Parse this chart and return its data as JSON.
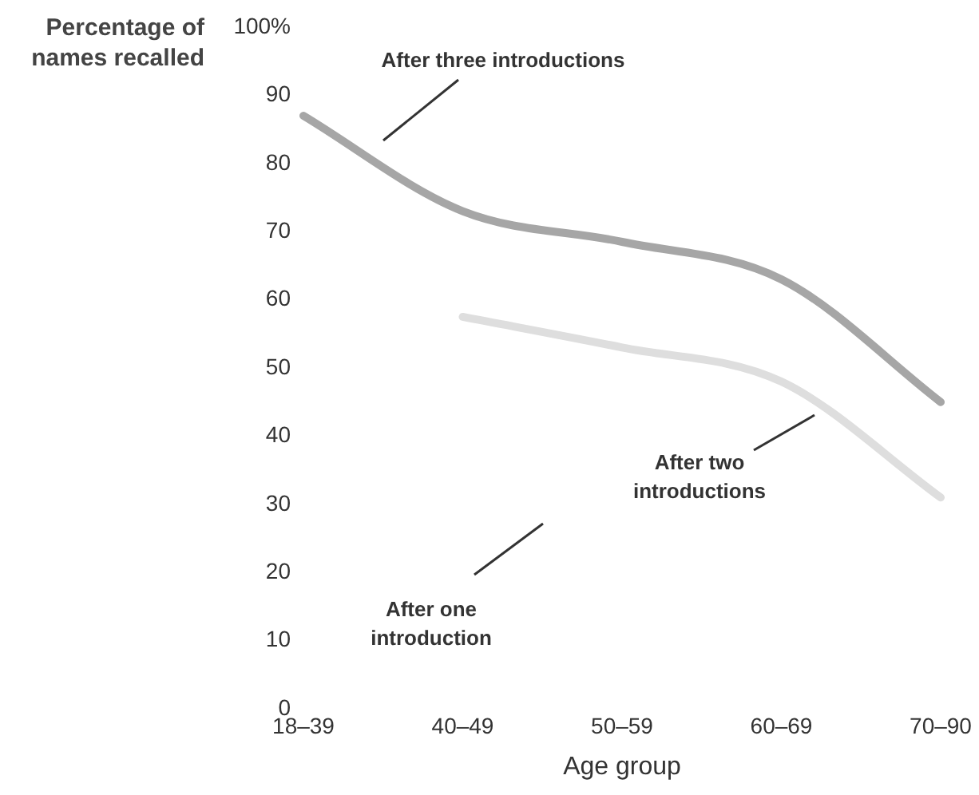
{
  "chart_data": {
    "type": "line",
    "ylabel": "Percentage of names recalled",
    "xlabel": "Age group",
    "categories": [
      "18–39",
      "40–49",
      "50–59",
      "60–69",
      "70–90"
    ],
    "series": [
      {
        "values": [
          87,
          73,
          68.5,
          63,
          45
        ],
        "color": "#a6a6a6"
      },
      {
        "values": [
          null,
          57.5,
          53,
          48,
          31
        ],
        "color": "#dedede"
      }
    ],
    "ylim": [
      0,
      100
    ],
    "yticks": [
      0,
      10,
      20,
      30,
      40,
      50,
      60,
      70,
      80,
      90,
      {
        "value": 100,
        "label": "100%"
      }
    ],
    "grid": false,
    "legend": false,
    "marker": "none",
    "line_style": "solid",
    "annotations": [
      "After three introductions",
      "After two introductions",
      "After one introduction"
    ]
  }
}
